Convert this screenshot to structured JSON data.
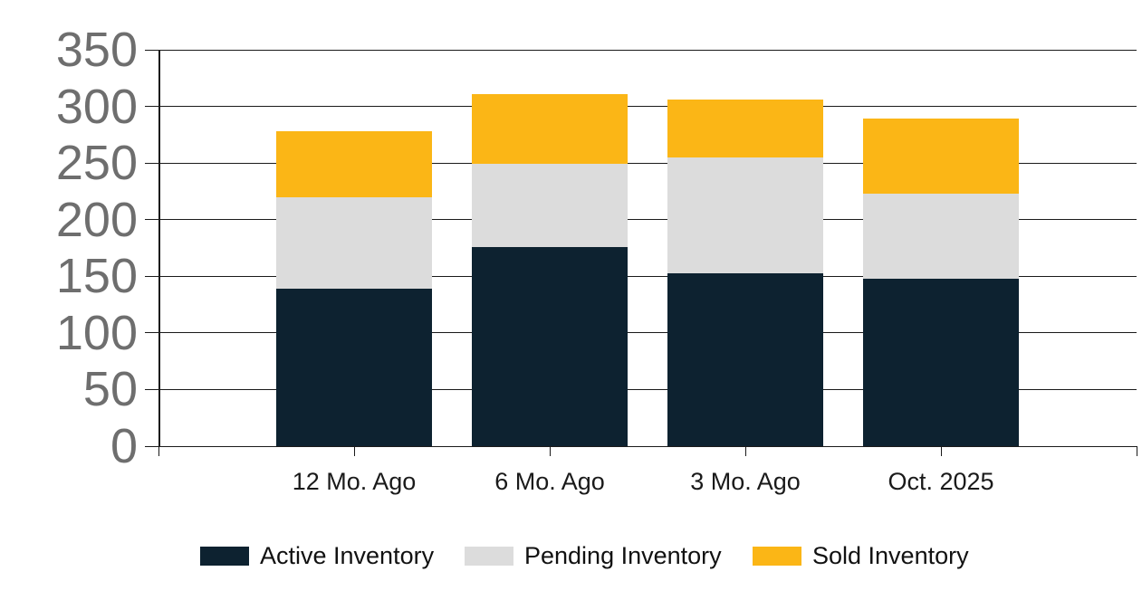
{
  "chart_data": {
    "type": "bar",
    "stacked": true,
    "title": "",
    "xlabel": "",
    "ylabel": "",
    "categories": [
      "12 Mo. Ago",
      "6 Mo. Ago",
      "3 Mo. Ago",
      "Oct. 2025"
    ],
    "series": [
      {
        "name": "Active Inventory",
        "color": "#0d2230",
        "values": [
          139,
          176,
          153,
          148
        ]
      },
      {
        "name": "Pending Inventory",
        "color": "#dcdcdc",
        "values": [
          81,
          73,
          102,
          75
        ]
      },
      {
        "name": "Sold Inventory",
        "color": "#fbb616",
        "values": [
          58,
          62,
          51,
          66
        ]
      }
    ],
    "stack_totals": [
      278,
      311,
      306,
      289
    ],
    "ylim": [
      0,
      350
    ],
    "yticks": [
      0,
      50,
      100,
      150,
      200,
      250,
      300,
      350
    ],
    "grid": true,
    "legend_position": "bottom"
  },
  "colors": {
    "background": "#ffffff",
    "grid_line": "#1a1a1a",
    "y_tick_label": "#6e6e6e",
    "x_tick_label": "#1a1a1a",
    "active": "#0d2230",
    "pending": "#dcdcdc",
    "sold": "#fbb616"
  }
}
